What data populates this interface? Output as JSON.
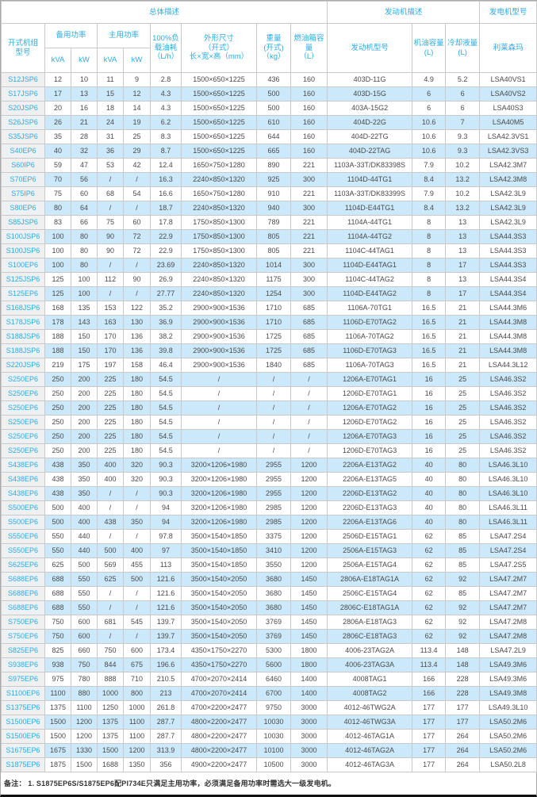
{
  "header": {
    "group_overall": "总体描述",
    "group_engine": "发动机描述",
    "group_alternator": "发电机型号",
    "columns": {
      "model_lines": [
        "开式机组",
        "型号"
      ],
      "standby": "备用功率",
      "prime": "主用功率",
      "unit_kva": "kVA",
      "unit_kw": "kW",
      "fuel_lines": [
        "100%负",
        "载油耗",
        "（L/h）"
      ],
      "dims_lines": [
        "外形尺寸",
        "（开式）",
        "长×宽×高（mm）"
      ],
      "weight_lines": [
        "重量",
        "(开式)",
        "（kg）"
      ],
      "tank_lines": [
        "燃油箱容",
        "量",
        "（L）"
      ],
      "engine": "发动机型号",
      "oil_lines": [
        "机油容量",
        "(L)"
      ],
      "coolant_lines": [
        "冷却液量",
        "(L)"
      ],
      "alternator_brand": "利莱森玛"
    }
  },
  "rows": [
    [
      "S12JSP6",
      "12",
      "10",
      "11",
      "9",
      "2.8",
      "1500×650×1225",
      "436",
      "160",
      "403D-11G",
      "4.9",
      "5.2",
      "LSA40VS1"
    ],
    [
      "S17JSP6",
      "17",
      "13",
      "15",
      "12",
      "4.3",
      "1500×650×1225",
      "500",
      "160",
      "403D-15G",
      "6",
      "6",
      "LSA40VS2"
    ],
    [
      "S20JSP6",
      "20",
      "16",
      "18",
      "14",
      "4.3",
      "1500×650×1225",
      "500",
      "160",
      "403A-15G2",
      "6",
      "6",
      "LSA40S3"
    ],
    [
      "S26JSP6",
      "26",
      "21",
      "24",
      "19",
      "6.2",
      "1500×650×1225",
      "610",
      "160",
      "404D-22G",
      "10.6",
      "7",
      "LSA40M5"
    ],
    [
      "S35JSP6",
      "35",
      "28",
      "31",
      "25",
      "8.3",
      "1500×650×1225",
      "644",
      "160",
      "404D-22TG",
      "10.6",
      "9.3",
      "LSA42.3VS1"
    ],
    [
      "S40EP6",
      "40",
      "32",
      "36",
      "29",
      "8.7",
      "1500×650×1225",
      "665",
      "160",
      "404D-22TAG",
      "10.6",
      "9.3",
      "LSA42.3VS3"
    ],
    [
      "S60IP6",
      "59",
      "47",
      "53",
      "42",
      "12.4",
      "1650×750×1280",
      "890",
      "221",
      "1103A-33T/DK83398S",
      "7.9",
      "10.2",
      "LSA42.3M7"
    ],
    [
      "S70EP6",
      "70",
      "56",
      "/",
      "/",
      "16.3",
      "2240×850×1320",
      "925",
      "300",
      "1104D-44TG1",
      "8.4",
      "13.2",
      "LSA42.3M8"
    ],
    [
      "S75IP6",
      "75",
      "60",
      "68",
      "54",
      "16.6",
      "1650×750×1280",
      "910",
      "221",
      "1103A-33T/DK83399S",
      "7.9",
      "10.2",
      "LSA42.3L9"
    ],
    [
      "S80EP6",
      "80",
      "64",
      "/",
      "/",
      "18.7",
      "2240×850×1320",
      "940",
      "300",
      "1104D-E44TG1",
      "8.4",
      "13.2",
      "LSA42.3L9"
    ],
    [
      "S85JSP6",
      "83",
      "66",
      "75",
      "60",
      "17.8",
      "1750×850×1300",
      "789",
      "221",
      "1104A-44TG1",
      "8",
      "13",
      "LSA42.3L9"
    ],
    [
      "S100JSP6",
      "100",
      "80",
      "90",
      "72",
      "22.9",
      "1750×850×1300",
      "805",
      "221",
      "1104A-44TG2",
      "8",
      "13",
      "LSA44.3S3"
    ],
    [
      "S100JSP6",
      "100",
      "80",
      "90",
      "72",
      "22.9",
      "1750×850×1300",
      "805",
      "221",
      "1104C-44TAG1",
      "8",
      "13",
      "LSA44.3S3"
    ],
    [
      "S100EP6",
      "100",
      "80",
      "/",
      "/",
      "23.69",
      "2240×850×1320",
      "1014",
      "300",
      "1104D-E44TAG1",
      "8",
      "17",
      "LSA44.3S3"
    ],
    [
      "S125JSP6",
      "125",
      "100",
      "112",
      "90",
      "26.9",
      "2240×850×1320",
      "1175",
      "300",
      "1104C-44TAG2",
      "8",
      "13",
      "LSA44.3S4"
    ],
    [
      "S125EP6",
      "125",
      "100",
      "/",
      "/",
      "27.77",
      "2240×850×1320",
      "1254",
      "300",
      "1104D-E44TAG2",
      "8",
      "17",
      "LSA44.3S4"
    ],
    [
      "S168JSP6",
      "168",
      "135",
      "153",
      "122",
      "35.2",
      "2900×900×1536",
      "1710",
      "685",
      "1106A-70TG1",
      "16.5",
      "21",
      "LSA44.3M6"
    ],
    [
      "S178JSP6",
      "178",
      "143",
      "163",
      "130",
      "36.9",
      "2900×900×1536",
      "1710",
      "685",
      "1106D-E70TAG2",
      "16.5",
      "21",
      "LSA44.3M8"
    ],
    [
      "S188JSP6",
      "188",
      "150",
      "170",
      "136",
      "38.2",
      "2900×900×1536",
      "1725",
      "685",
      "1106A-70TAG2",
      "16.5",
      "21",
      "LSA44.3M8"
    ],
    [
      "S188JSP6",
      "188",
      "150",
      "170",
      "136",
      "39.8",
      "2900×900×1536",
      "1725",
      "685",
      "1106D-E70TAG3",
      "16.5",
      "21",
      "LSA44.3M8"
    ],
    [
      "S220JSP6",
      "219",
      "175",
      "197",
      "158",
      "46.4",
      "2900×900×1536",
      "1840",
      "685",
      "1106A-70TAG3",
      "16.5",
      "21",
      "LSA44.3L12"
    ],
    [
      "S250EP6",
      "250",
      "200",
      "225",
      "180",
      "54.5",
      "/",
      "/",
      "/",
      "1206A-E70TAG1",
      "16",
      "25",
      "LSA46.3S2"
    ],
    [
      "S250EP6",
      "250",
      "200",
      "225",
      "180",
      "54.5",
      "/",
      "/",
      "/",
      "1206D-E70TAG1",
      "16",
      "25",
      "LSA46.3S2"
    ],
    [
      "S250EP6",
      "250",
      "200",
      "225",
      "180",
      "54.5",
      "/",
      "/",
      "/",
      "1206A-E70TAG2",
      "16",
      "25",
      "LSA46.3S2"
    ],
    [
      "S250EP6",
      "250",
      "200",
      "225",
      "180",
      "54.5",
      "/",
      "/",
      "/",
      "1206D-E70TAG2",
      "16",
      "25",
      "LSA46.3S2"
    ],
    [
      "S250EP6",
      "250",
      "200",
      "225",
      "180",
      "54.5",
      "/",
      "/",
      "/",
      "1206A-E70TAG3",
      "16",
      "25",
      "LSA46.3S2"
    ],
    [
      "S250EP6",
      "250",
      "200",
      "225",
      "180",
      "54.5",
      "/",
      "/",
      "/",
      "1206D-E70TAG3",
      "16",
      "25",
      "LSA46.3S2"
    ],
    [
      "S438EP6",
      "438",
      "350",
      "400",
      "320",
      "90.3",
      "3200×1206×1980",
      "2955",
      "1200",
      "2206A-E13TAG2",
      "40",
      "80",
      "LSA46.3L10"
    ],
    [
      "S438EP6",
      "438",
      "350",
      "400",
      "320",
      "90.3",
      "3200×1206×1980",
      "2955",
      "1200",
      "2206A-E13TAG5",
      "40",
      "80",
      "LSA46.3L10"
    ],
    [
      "S438EP6",
      "438",
      "350",
      "/",
      "/",
      "90.3",
      "3200×1206×1980",
      "2955",
      "1200",
      "2206D-E13TAG2",
      "40",
      "80",
      "LSA46.3L10"
    ],
    [
      "S500EP6",
      "500",
      "400",
      "/",
      "/",
      "94",
      "3200×1206×1980",
      "2985",
      "1200",
      "2206D-E13TAG3",
      "40",
      "80",
      "LSA46.3L11"
    ],
    [
      "S500EP6",
      "500",
      "400",
      "438",
      "350",
      "94",
      "3200×1206×1980",
      "2985",
      "1200",
      "2206A-E13TAG6",
      "40",
      "80",
      "LSA46.3L11"
    ],
    [
      "S550EP6",
      "550",
      "440",
      "/",
      "/",
      "97.8",
      "3500×1540×1850",
      "3375",
      "1200",
      "2506D-E15TAG1",
      "62",
      "85",
      "LSA47.2S4"
    ],
    [
      "S550EP6",
      "550",
      "440",
      "500",
      "400",
      "97",
      "3500×1540×1850",
      "3410",
      "1200",
      "2506A-E15TAG3",
      "62",
      "85",
      "LSA47.2S4"
    ],
    [
      "S625EP6",
      "625",
      "500",
      "569",
      "455",
      "113",
      "3500×1540×1850",
      "3550",
      "1200",
      "2506A-E15TAG4",
      "62",
      "85",
      "LSA47.2S5"
    ],
    [
      "S688EP6",
      "688",
      "550",
      "625",
      "500",
      "121.6",
      "3500×1540×2050",
      "3680",
      "1450",
      "2806A-E18TAG1A",
      "62",
      "92",
      "LSA47.2M7"
    ],
    [
      "S688EP6",
      "688",
      "550",
      "/",
      "/",
      "121.6",
      "3500×1540×2050",
      "3680",
      "1450",
      "2506C-E15TAG4",
      "62",
      "85",
      "LSA47.2M7"
    ],
    [
      "S688EP6",
      "688",
      "550",
      "/",
      "/",
      "121.6",
      "3500×1540×2050",
      "3680",
      "1450",
      "2806C-E18TAG1A",
      "62",
      "92",
      "LSA47.2M7"
    ],
    [
      "S750EP6",
      "750",
      "600",
      "681",
      "545",
      "139.7",
      "3500×1540×2050",
      "3769",
      "1450",
      "2806A-E18TAG3",
      "62",
      "92",
      "LSA47.2M8"
    ],
    [
      "S750EP6",
      "750",
      "600",
      "/",
      "/",
      "139.7",
      "3500×1540×2050",
      "3769",
      "1450",
      "2806C-E18TAG3",
      "62",
      "92",
      "LSA47.2M8"
    ],
    [
      "S825EP6",
      "825",
      "660",
      "750",
      "600",
      "173.4",
      "4350×1750×2270",
      "5300",
      "1800",
      "4006-23TAG2A",
      "113.4",
      "148",
      "LSA47.2L9"
    ],
    [
      "S938EP6",
      "938",
      "750",
      "844",
      "675",
      "196.6",
      "4350×1750×2270",
      "5600",
      "1800",
      "4006-23TAG3A",
      "113.4",
      "148",
      "LSA49.3M6"
    ],
    [
      "S975EP6",
      "975",
      "780",
      "888",
      "710",
      "210.5",
      "4700×2070×2414",
      "6460",
      "1400",
      "4008TAG1",
      "166",
      "228",
      "LSA49.3M6"
    ],
    [
      "S1100EP6",
      "1100",
      "880",
      "1000",
      "800",
      "213",
      "4700×2070×2414",
      "6700",
      "1400",
      "4008TAG2",
      "166",
      "228",
      "LSA49.3M8"
    ],
    [
      "S1375EP6",
      "1375",
      "1100",
      "1250",
      "1000",
      "261.8",
      "4700×2200×2477",
      "9750",
      "3000",
      "4012-46TWG2A",
      "177",
      "177",
      "LSA49.3L10"
    ],
    [
      "S1500EP6",
      "1500",
      "1200",
      "1375",
      "1100",
      "287.7",
      "4800×2200×2477",
      "10030",
      "3000",
      "4012-46TWG3A",
      "177",
      "177",
      "LSA50.2M6"
    ],
    [
      "S1500EP6",
      "1500",
      "1200",
      "1375",
      "1100",
      "287.7",
      "4800×2200×2477",
      "10030",
      "3000",
      "4012-46TAG1A",
      "177",
      "264",
      "LSA50.2M6"
    ],
    [
      "S1675EP6",
      "1675",
      "1330",
      "1500",
      "1200",
      "313.9",
      "4800×2200×2477",
      "10100",
      "3000",
      "4012-46TAG2A",
      "177",
      "264",
      "LSA50.2M6"
    ],
    [
      "S1875EP6",
      "1875",
      "1500",
      "1688",
      "1350",
      "356",
      "4900×2200×2477",
      "10500",
      "3000",
      "4012-46TAG3A",
      "177",
      "264",
      "LSA50.2L8"
    ]
  ],
  "note": "备注：  1. S1875EP6S/S1875EP6配PI734E只满足主用功率，必须满足备用功率时需选大一级发电机。",
  "colors": {
    "accent_cyan": "#29abe2",
    "alt_row_blue": "#cbe9fa",
    "model_col_gray": "#f0f0f0",
    "grid_line": "#c9c9c9"
  }
}
